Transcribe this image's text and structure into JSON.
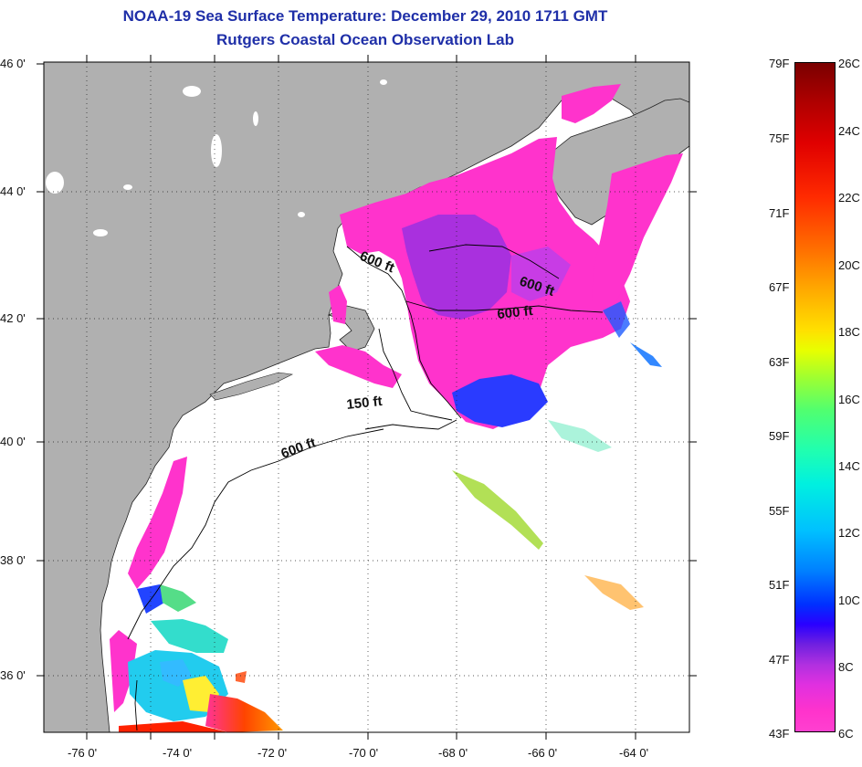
{
  "header": {
    "title": "NOAA-19 Sea Surface Temperature:  December 29, 2010 1711 GMT",
    "subtitle": "Rutgers Coastal Ocean Observation Lab"
  },
  "map": {
    "lon_labels": [
      "-76 0'",
      "-74 0'",
      "-72 0'",
      "-70 0'",
      "-68 0'",
      "-66 0'",
      "-64 0'"
    ],
    "lat_labels": [
      "46 0'",
      "44 0'",
      "42 0'",
      "40 0'",
      "38 0'",
      "36 0'"
    ],
    "contour_labels": [
      "600 ft",
      "600 ft",
      "600 ft",
      "150 ft",
      "600 ft"
    ],
    "colors": {
      "land": "#b0b0b0",
      "water_no_data": "#ffffff",
      "cold": "#ff33cc",
      "violet": "#8a2be2"
    }
  },
  "colorbar": {
    "fahrenheit": [
      "79F",
      "75F",
      "71F",
      "67F",
      "63F",
      "59F",
      "55F",
      "51F",
      "47F",
      "43F"
    ],
    "celsius": [
      "26C",
      "24C",
      "22C",
      "20C",
      "18C",
      "16C",
      "14C",
      "12C",
      "10C",
      "8C",
      "6C"
    ]
  }
}
